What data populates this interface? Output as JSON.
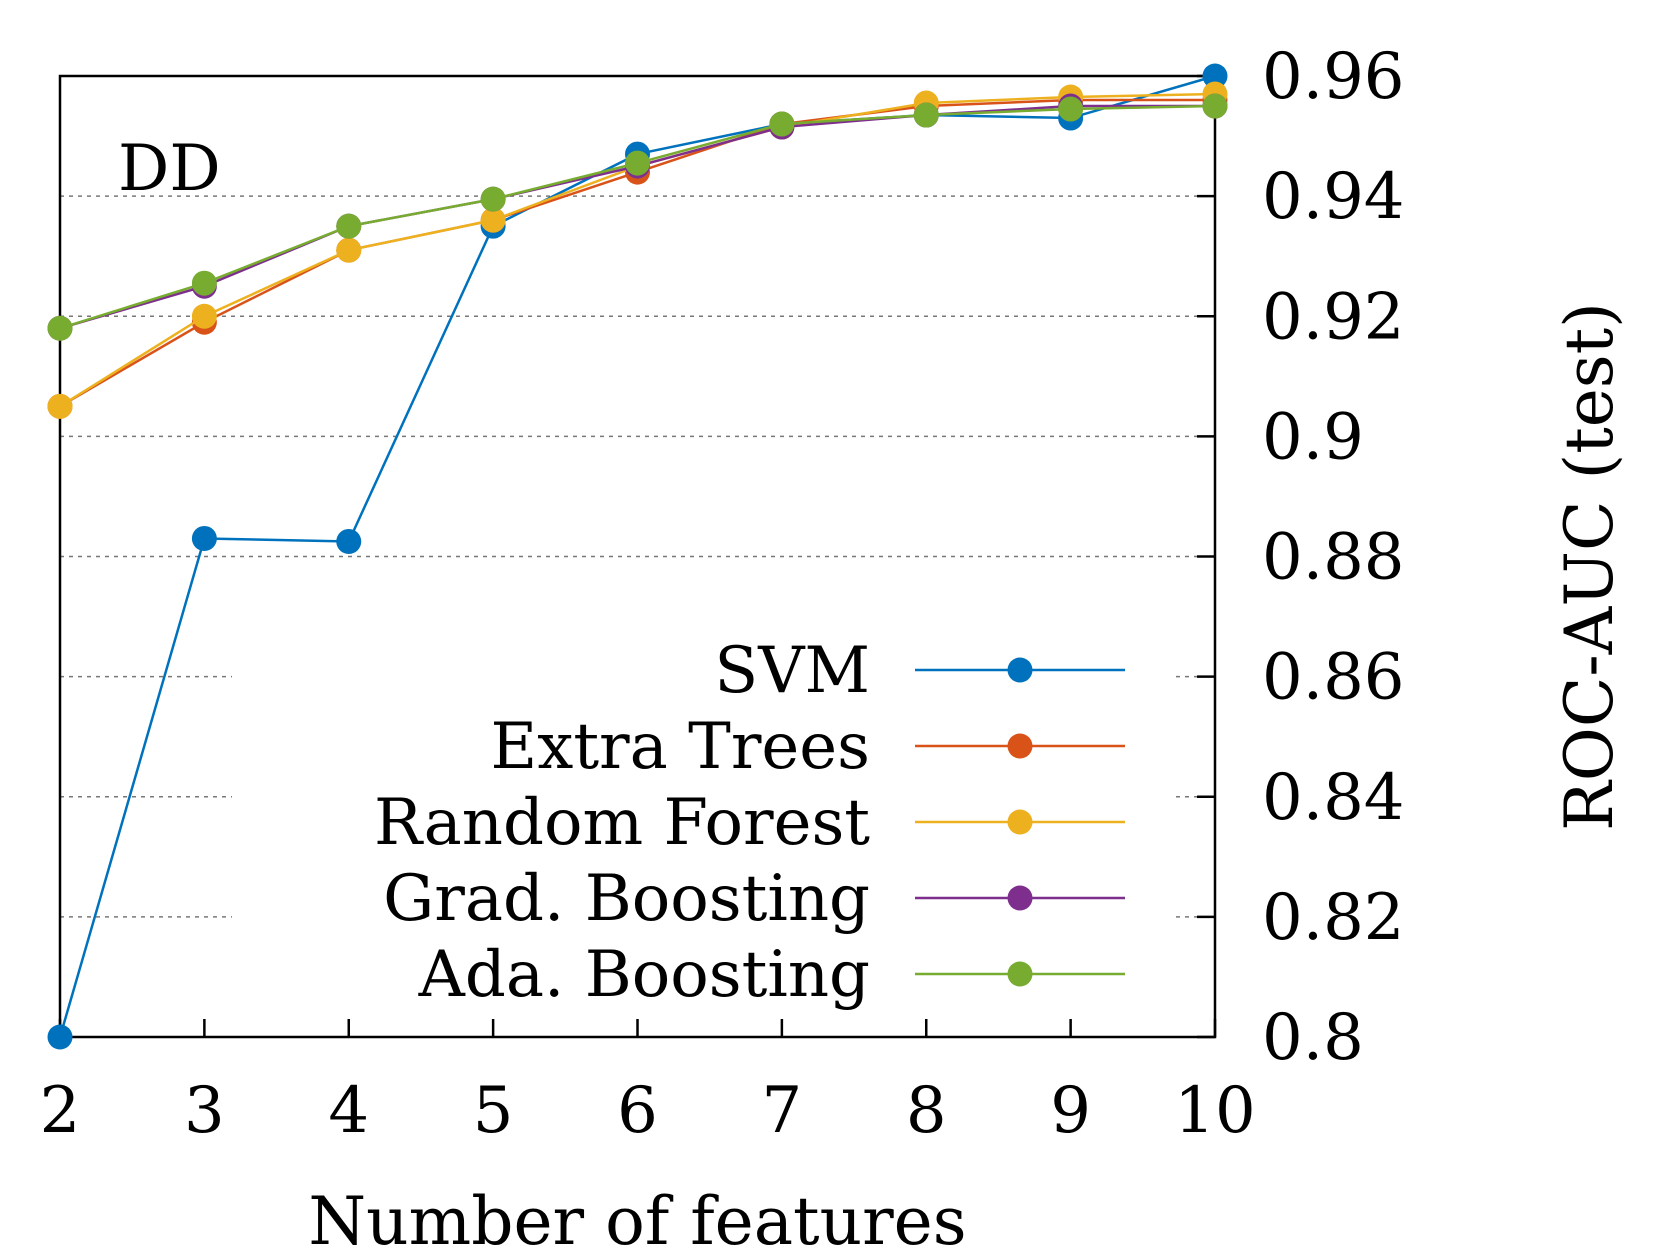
{
  "chart_data": {
    "type": "line",
    "panel_label": "DD",
    "xlabel": "Number of features",
    "ylabel": "ROC-AUC (test)",
    "x": [
      2,
      3,
      4,
      5,
      6,
      7,
      8,
      9,
      10
    ],
    "xlim": [
      2,
      10
    ],
    "ylim": [
      0.8,
      0.96
    ],
    "x_ticks": [
      "2",
      "3",
      "4",
      "5",
      "6",
      "7",
      "8",
      "9",
      "10"
    ],
    "y_ticks": [
      "0.8",
      "0.82",
      "0.84",
      "0.86",
      "0.88",
      "0.9",
      "0.92",
      "0.94",
      "0.96"
    ],
    "y_axis_side": "right",
    "grid": "horizontal dashed",
    "legend_position": "bottom-right",
    "series": [
      {
        "name": "SVM",
        "color": "#0072BD",
        "values": [
          0.8,
          0.883,
          0.8825,
          0.935,
          0.947,
          0.952,
          0.9535,
          0.953,
          0.96
        ]
      },
      {
        "name": "Extra Trees",
        "color": "#D95319",
        "values": [
          0.905,
          0.919,
          0.931,
          0.936,
          0.944,
          0.952,
          0.955,
          0.956,
          0.956
        ]
      },
      {
        "name": "Random Forest",
        "color": "#EDB120",
        "values": [
          0.905,
          0.92,
          0.931,
          0.936,
          0.945,
          0.9515,
          0.9555,
          0.9565,
          0.957
        ]
      },
      {
        "name": "Grad. Boosting",
        "color": "#7E2F8E",
        "values": [
          0.918,
          0.925,
          0.935,
          0.9395,
          0.945,
          0.9515,
          0.9535,
          0.955,
          0.955
        ]
      },
      {
        "name": "Ada. Boosting",
        "color": "#77AC30",
        "values": [
          0.918,
          0.9255,
          0.935,
          0.9395,
          0.9455,
          0.952,
          0.9535,
          0.9545,
          0.955
        ]
      }
    ]
  }
}
